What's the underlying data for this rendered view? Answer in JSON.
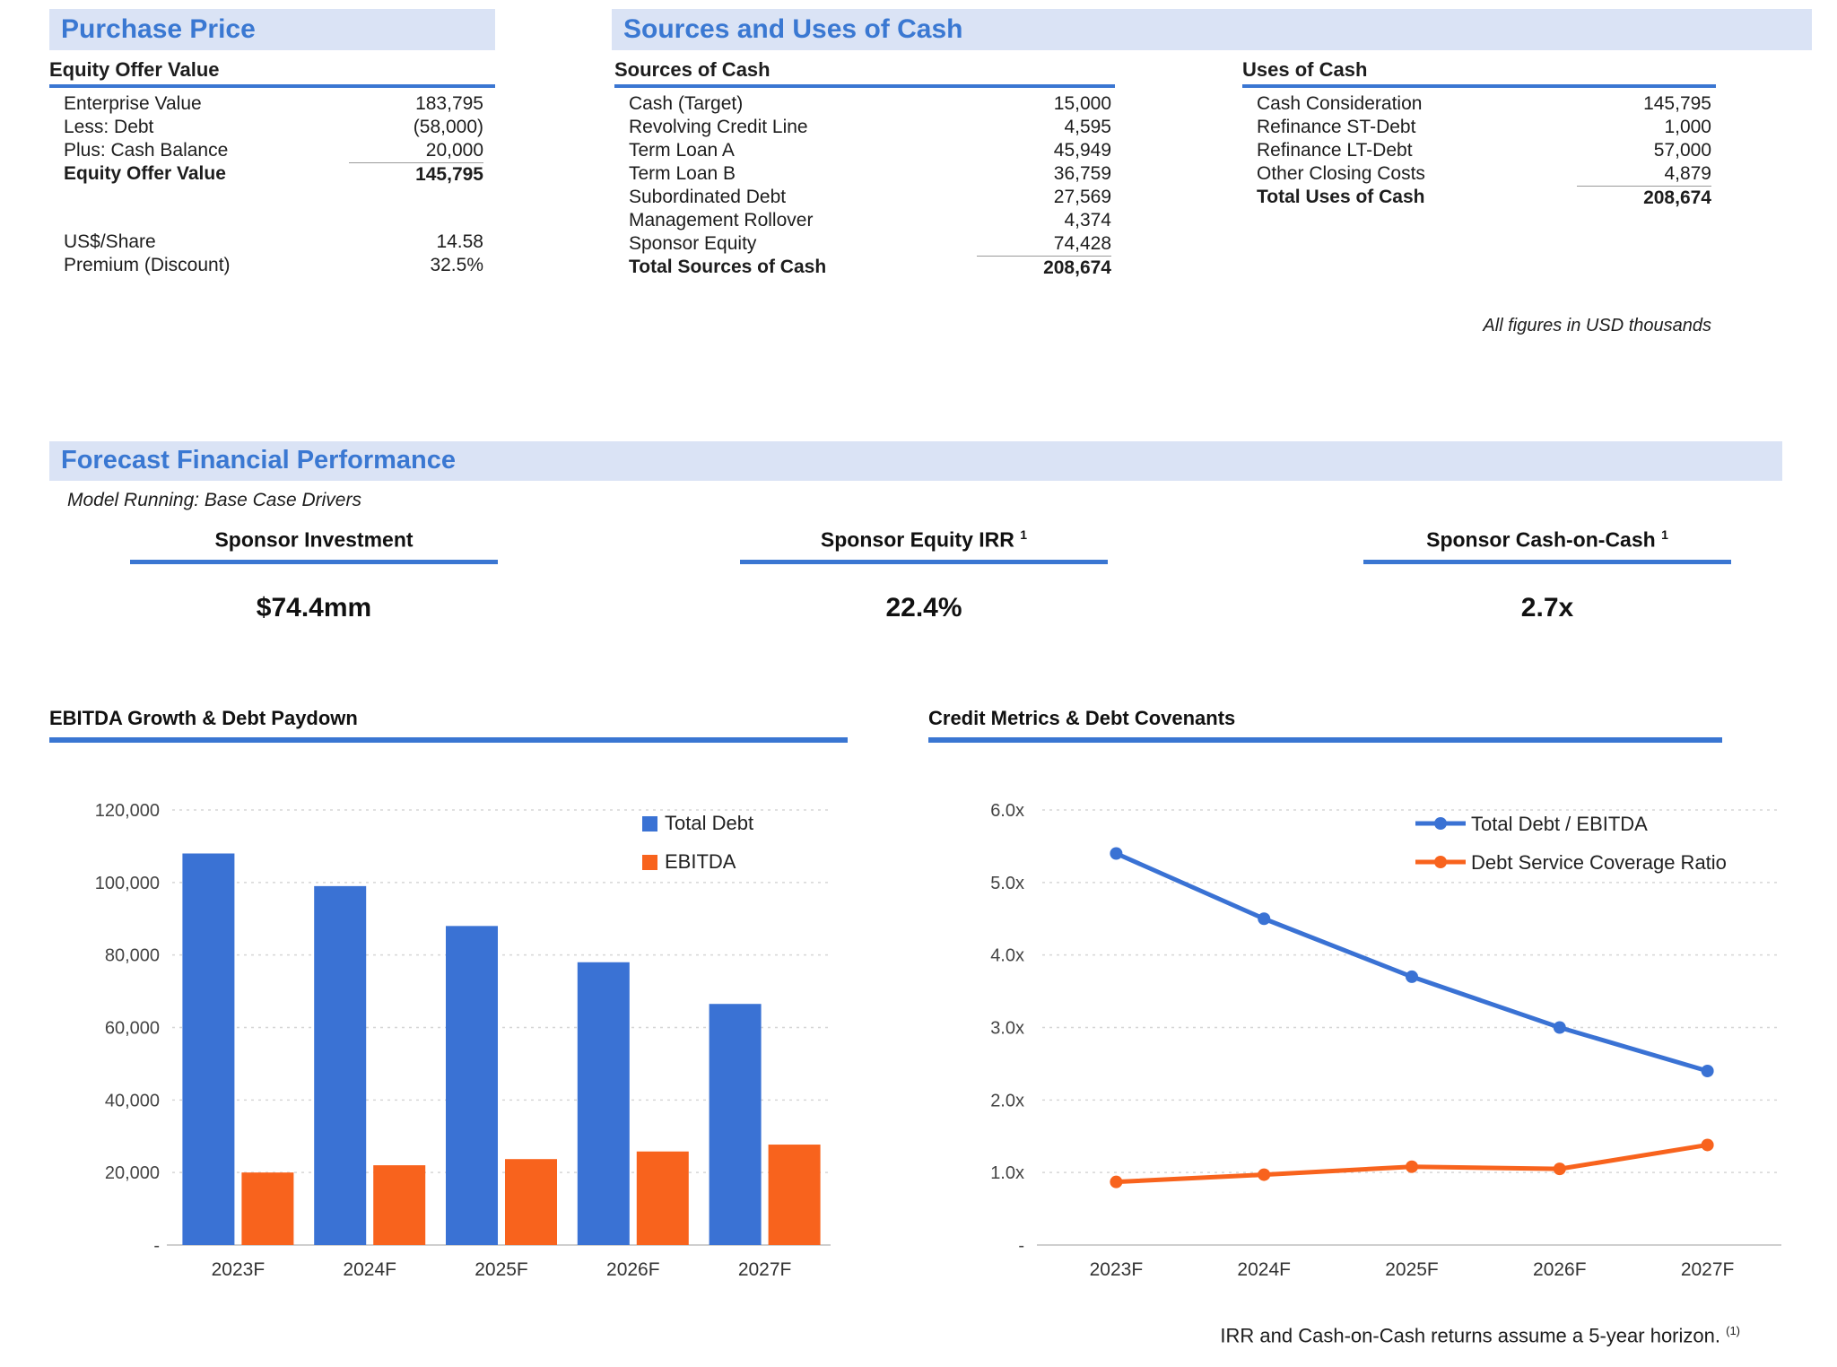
{
  "colors": {
    "accent_blue": "#3A78D2",
    "band_background": "#DAE3F5",
    "series_blue": "#3A72D4",
    "series_orange": "#F8631D"
  },
  "purchase_price": {
    "section_title": "Purchase Price",
    "equity_table": {
      "title": "Equity Offer Value",
      "rows": [
        {
          "label": "Enterprise Value",
          "value": "183,795"
        },
        {
          "label": "Less: Debt",
          "value": "(58,000)"
        },
        {
          "label": "Plus: Cash Balance",
          "value": "20,000"
        }
      ],
      "total": {
        "label": "Equity Offer Value",
        "value": "145,795"
      },
      "per_share_rows": [
        {
          "label": "US$/Share",
          "value": "14.58"
        },
        {
          "label": "Premium (Discount)",
          "value": "32.5%"
        }
      ]
    }
  },
  "sources_uses": {
    "section_title": "Sources and Uses of Cash",
    "sources": {
      "title": "Sources of Cash",
      "rows": [
        {
          "label": "Cash (Target)",
          "value": "15,000"
        },
        {
          "label": "Revolving Credit Line",
          "value": "4,595"
        },
        {
          "label": "Term Loan A",
          "value": "45,949"
        },
        {
          "label": "Term Loan B",
          "value": "36,759"
        },
        {
          "label": "Subordinated Debt",
          "value": "27,569"
        },
        {
          "label": "Management Rollover",
          "value": "4,374"
        },
        {
          "label": "Sponsor Equity",
          "value": "74,428"
        }
      ],
      "total": {
        "label": "Total Sources of Cash",
        "value": "208,674"
      }
    },
    "uses": {
      "title": "Uses of Cash",
      "rows": [
        {
          "label": "Cash Consideration",
          "value": "145,795"
        },
        {
          "label": "Refinance ST-Debt",
          "value": "1,000"
        },
        {
          "label": "Refinance LT-Debt",
          "value": "57,000"
        },
        {
          "label": "Other Closing Costs",
          "value": "4,879"
        }
      ],
      "total": {
        "label": "Total Uses of Cash",
        "value": "208,674"
      }
    },
    "note": "All figures in USD thousands"
  },
  "forecast": {
    "section_title": "Forecast Financial Performance",
    "subtitle": "Model Running: Base Case Drivers",
    "kpis": [
      {
        "title": "Sponsor Investment",
        "sup": "",
        "value": "$74.4mm"
      },
      {
        "title": "Sponsor Equity IRR",
        "sup": "1",
        "value": "22.4%"
      },
      {
        "title": "Sponsor Cash-on-Cash",
        "sup": "1",
        "value": "2.7x"
      }
    ]
  },
  "chart_data": [
    {
      "type": "bar",
      "title": "EBITDA Growth & Debt Paydown",
      "categories": [
        "2023F",
        "2024F",
        "2025F",
        "2026F",
        "2027F"
      ],
      "series": [
        {
          "name": "Total Debt",
          "color": "#3A72D4",
          "values": [
            108000,
            99000,
            88000,
            78000,
            66500
          ]
        },
        {
          "name": "EBITDA",
          "color": "#F8631D",
          "values": [
            20000,
            22000,
            23700,
            25800,
            27700
          ]
        }
      ],
      "ylim": [
        0,
        120000
      ],
      "yticks": [
        {
          "v": 0,
          "label": "-"
        },
        {
          "v": 20000,
          "label": "20,000"
        },
        {
          "v": 40000,
          "label": "40,000"
        },
        {
          "v": 60000,
          "label": "60,000"
        },
        {
          "v": 80000,
          "label": "80,000"
        },
        {
          "v": 100000,
          "label": "100,000"
        },
        {
          "v": 120000,
          "label": "120,000"
        }
      ],
      "grid": true,
      "legend_position": "top-right"
    },
    {
      "type": "line",
      "title": "Credit Metrics & Debt Covenants",
      "categories": [
        "2023F",
        "2024F",
        "2025F",
        "2026F",
        "2027F"
      ],
      "series": [
        {
          "name": "Total Debt / EBITDA",
          "color": "#3A72D4",
          "values": [
            5.4,
            4.5,
            3.7,
            3.0,
            2.4
          ]
        },
        {
          "name": "Debt Service Coverage Ratio",
          "color": "#F8631D",
          "values": [
            0.87,
            0.97,
            1.08,
            1.05,
            1.38
          ]
        }
      ],
      "ylim": [
        0,
        6
      ],
      "yticks": [
        {
          "v": 0,
          "label": "-"
        },
        {
          "v": 1,
          "label": "1.0x"
        },
        {
          "v": 2,
          "label": "2.0x"
        },
        {
          "v": 3,
          "label": "3.0x"
        },
        {
          "v": 4,
          "label": "4.0x"
        },
        {
          "v": 5,
          "label": "5.0x"
        },
        {
          "v": 6,
          "label": "6.0x"
        }
      ],
      "grid": true,
      "legend_position": "top-right"
    }
  ],
  "footnote": {
    "text": "IRR and Cash-on-Cash returns assume a 5-year horizon.",
    "sup": "(1)"
  }
}
